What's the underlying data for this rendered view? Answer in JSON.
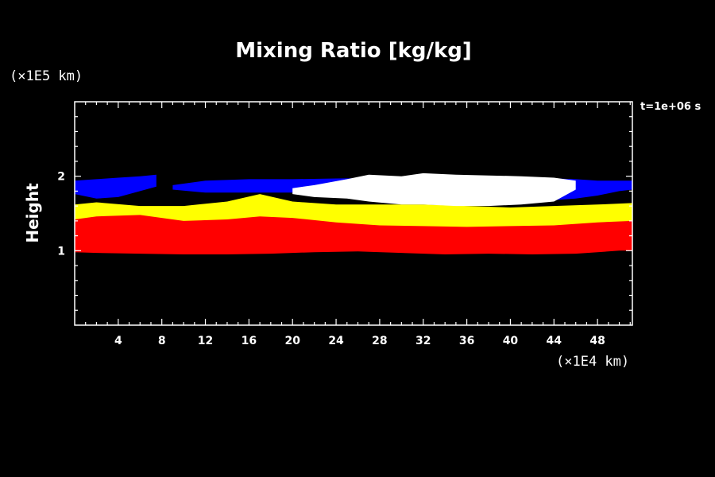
{
  "chart_data": {
    "type": "heatmap",
    "title": "Mixing Ratio [kg/kg]",
    "ylabel": "Height",
    "xlabel": "",
    "x_unit": "(×1E4 km)",
    "y_unit": "(×1E5 km)",
    "time_label": "t=1e+06 s",
    "xlim": [
      0,
      51.2
    ],
    "ylim": [
      0,
      3
    ],
    "x_ticks": [
      4,
      8,
      12,
      16,
      20,
      24,
      28,
      32,
      36,
      40,
      44,
      48
    ],
    "y_ticks": [
      1,
      2
    ],
    "colors": {
      "background": "#000000",
      "red": "#ff0000",
      "yellow": "#ffff00",
      "blue": "#0000ff",
      "white": "#ffffff",
      "green": "#00c800"
    },
    "bands": [
      {
        "name": "red",
        "color": "#ff0000",
        "x": [
          0,
          2,
          6,
          10,
          14,
          18,
          22,
          26,
          30,
          34,
          38,
          42,
          46,
          50,
          51.2
        ],
        "bottom": [
          0.98,
          0.97,
          0.96,
          0.95,
          0.95,
          0.96,
          0.98,
          0.99,
          0.97,
          0.95,
          0.96,
          0.95,
          0.96,
          1.0,
          1.0
        ],
        "top": [
          1.45,
          1.48,
          1.5,
          1.44,
          1.46,
          1.48,
          1.5,
          1.44,
          1.38,
          1.36,
          1.34,
          1.36,
          1.38,
          1.44,
          1.46
        ]
      },
      {
        "name": "yellow",
        "color": "#ffff00",
        "x": [
          0,
          2,
          6,
          10,
          14,
          17,
          20,
          24,
          28,
          32,
          36,
          40,
          44,
          48,
          51.2
        ],
        "bottom": [
          1.42,
          1.46,
          1.48,
          1.4,
          1.42,
          1.46,
          1.44,
          1.38,
          1.34,
          1.33,
          1.32,
          1.33,
          1.34,
          1.38,
          1.4
        ],
        "top": [
          1.62,
          1.65,
          1.6,
          1.6,
          1.66,
          1.76,
          1.66,
          1.62,
          1.62,
          1.62,
          1.6,
          1.58,
          1.6,
          1.62,
          1.64
        ]
      },
      {
        "name": "blue-left",
        "color": "#0000ff",
        "x": [
          0,
          2,
          4,
          6,
          7.5
        ],
        "bottom": [
          1.76,
          1.7,
          1.72,
          1.8,
          1.86
        ],
        "top": [
          1.94,
          1.96,
          1.98,
          2.0,
          2.02
        ]
      },
      {
        "name": "blue-right",
        "color": "#0000ff",
        "x": [
          9,
          12,
          16,
          20,
          24,
          30,
          36,
          42,
          46,
          48,
          50,
          51.2
        ],
        "bottom": [
          1.82,
          1.78,
          1.78,
          1.78,
          1.76,
          1.72,
          1.68,
          1.66,
          1.7,
          1.74,
          1.8,
          1.82
        ],
        "top": [
          1.88,
          1.94,
          1.96,
          1.96,
          1.97,
          1.98,
          1.98,
          1.98,
          1.96,
          1.94,
          1.94,
          1.94
        ]
      },
      {
        "name": "white",
        "color": "#ffffff",
        "x": [
          20,
          22,
          25,
          27,
          30,
          32,
          35,
          38,
          41,
          44,
          46
        ],
        "bottom": [
          1.76,
          1.72,
          1.7,
          1.66,
          1.62,
          1.62,
          1.6,
          1.6,
          1.62,
          1.66,
          1.82
        ],
        "top": [
          1.84,
          1.88,
          1.96,
          2.02,
          2.0,
          2.04,
          2.02,
          2.01,
          2.0,
          1.98,
          1.94
        ]
      }
    ]
  }
}
